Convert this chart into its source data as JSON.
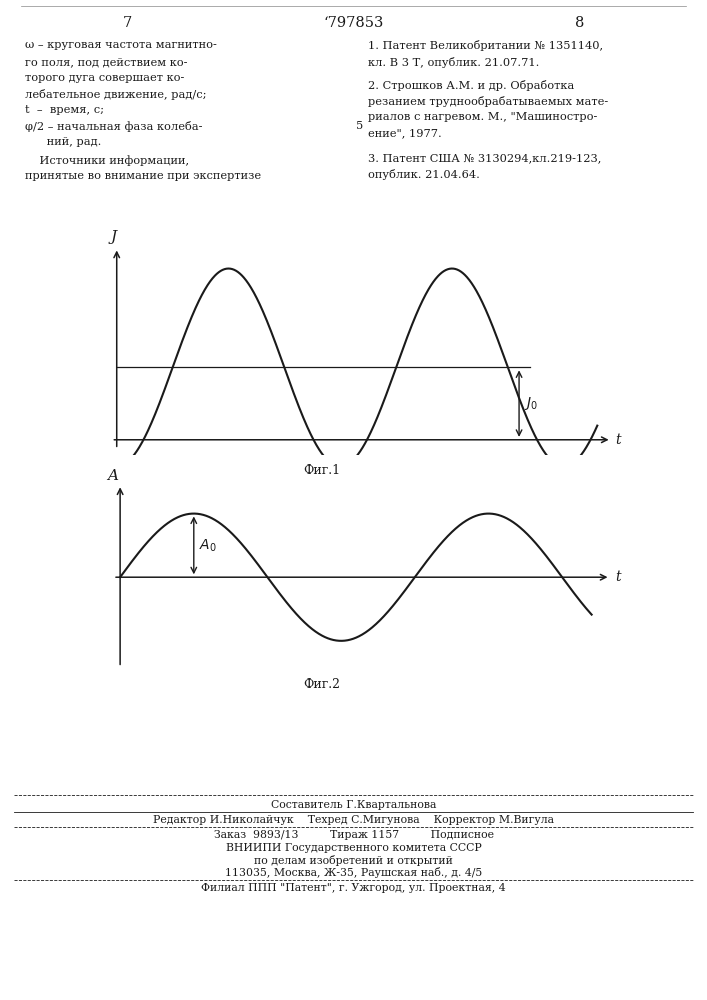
{
  "fig_width": 7.07,
  "fig_height": 10.0,
  "bg_color": "#ffffff",
  "text_color": "#1a1a1a",
  "line_color": "#1a1a1a",
  "page_num_left": "7",
  "page_num_center": "‘797853",
  "page_num_right": "8",
  "fig1_label": "Фиг.1",
  "fig2_label": "Фиг.2",
  "left_col": [
    [
      "ω – круговая частота магнитно-",
      0.04
    ],
    [
      "го поля, под действием ко-",
      0.057
    ],
    [
      "торого дуга совершает ко-",
      0.073
    ],
    [
      "лебательное движение, рад/с;",
      0.089
    ],
    [
      "t  –  время, с;",
      0.105
    ],
    [
      "φ/2 – начальная фаза колеба-",
      0.121
    ],
    [
      "      ний, рад.",
      0.137
    ],
    [
      "    Источники информации,",
      0.155
    ],
    [
      "принятые во внимание при экспертизе",
      0.171
    ]
  ],
  "right_col": [
    [
      "1. Патент Великобритании № 1351140,",
      0.04
    ],
    [
      "кл. В 3 Т, опублик. 21.07.71.",
      0.057
    ],
    [
      "2. Строшков А.М. и др. Обработка",
      0.08
    ],
    [
      "резанием труднообрабатываемых мате-",
      0.096
    ],
    [
      "риалов с нагревом. М., \"Машиностро-",
      0.112
    ],
    [
      "ение\", 1977.",
      0.128
    ],
    [
      "3. Патент США № 3130294,кл.219-123,",
      0.153
    ],
    [
      "опублик. 21.04.64.",
      0.169
    ]
  ],
  "between_5": [
    0.503,
    0.121
  ],
  "footer_sostavitel": "Составитель Г.Квартальнова",
  "footer_redaktor": "Редактор И.Николайчук    Техред С.Мигунова    Корректор М.Вигула",
  "footer_zakaz": "Заказ  9893/13         Тираж 1157         Подписное",
  "footer_vniip1": "ВНИИПИ Государственного комитета СССР",
  "footer_vniip2": "по делам изобретений и открытий",
  "footer_address": "113035, Москва, Ж-35, Раушская наб., д. 4/5",
  "footer_filial": "Филиал ППП \"Патент\", г. Ужгород, ул. Проектная, 4"
}
